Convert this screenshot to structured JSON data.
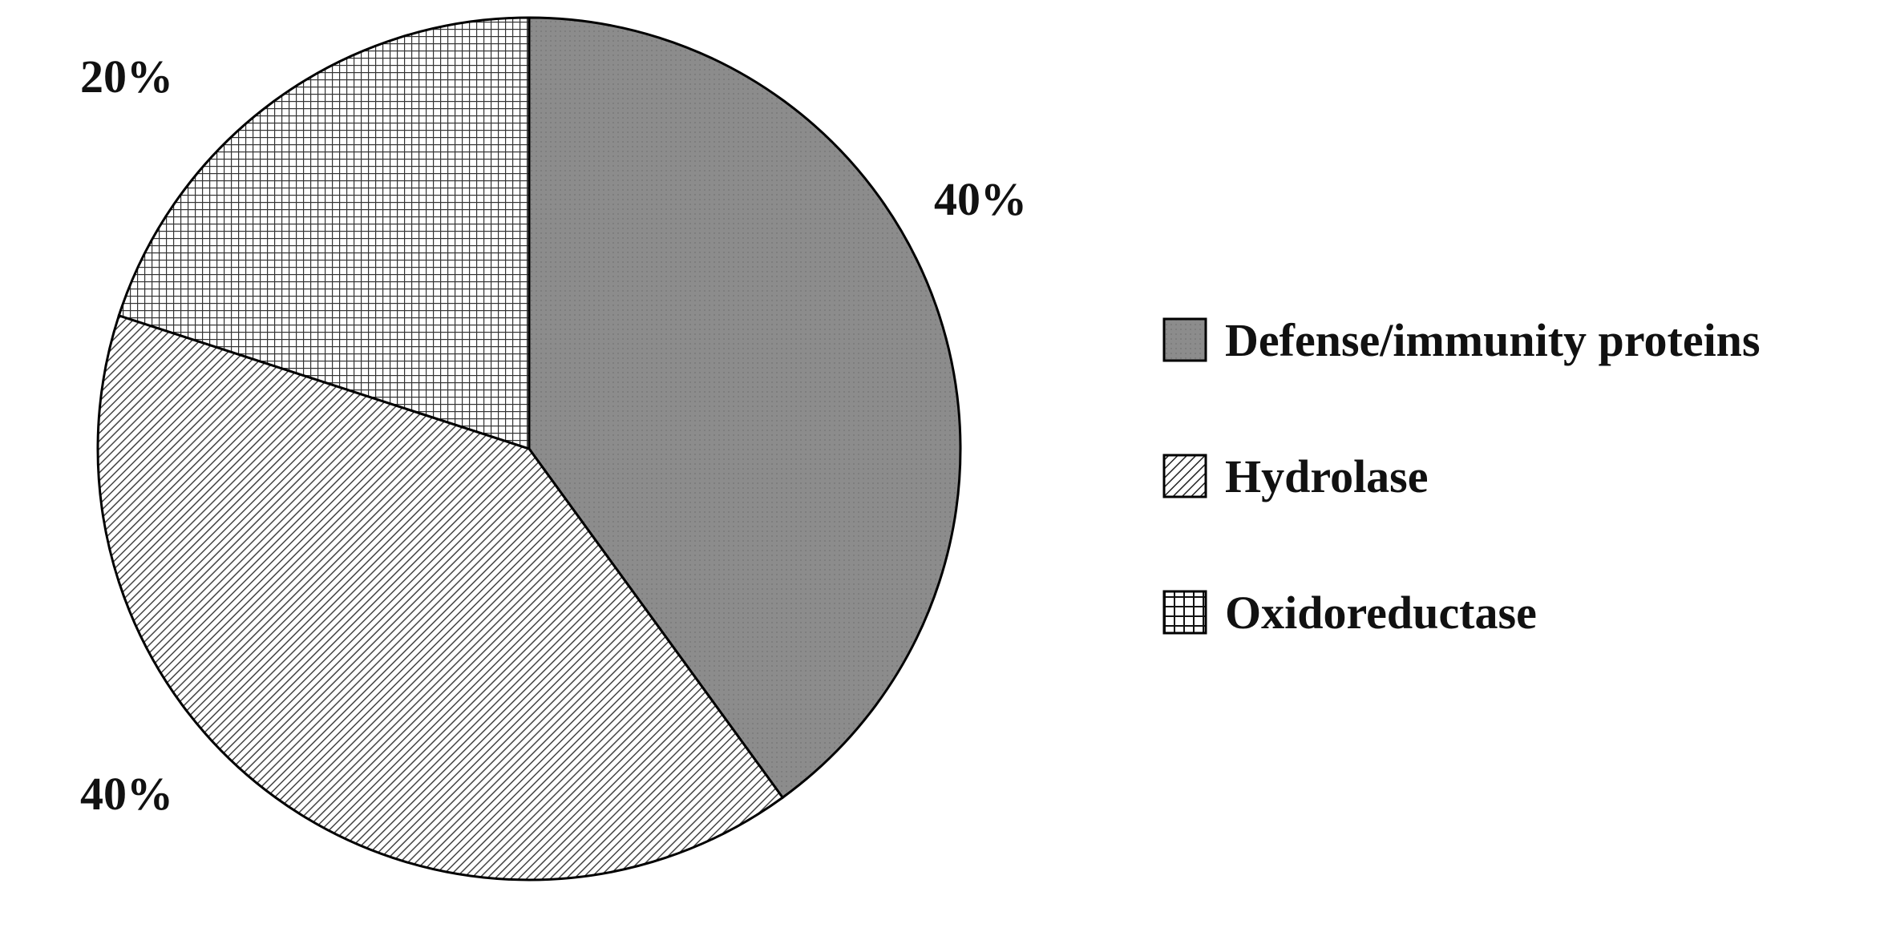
{
  "chart_data": {
    "type": "pie",
    "title": "",
    "start_angle_deg": 0,
    "direction": "clockwise",
    "slices": [
      {
        "name": "Defense/immunity proteins",
        "value": 40,
        "label": "40%",
        "pattern": "solid-gray",
        "color": "#8c8c8c"
      },
      {
        "name": "Hydrolase",
        "value": 40,
        "label": "40%",
        "pattern": "diagonal-lines",
        "color": "#555555"
      },
      {
        "name": "Oxidoreductase",
        "value": 20,
        "label": "20%",
        "pattern": "grid",
        "color": "#333333"
      }
    ],
    "legend_position": "right"
  }
}
